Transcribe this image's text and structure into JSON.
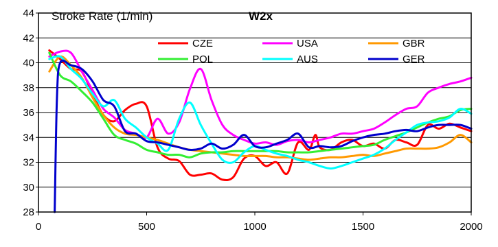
{
  "chart_data": {
    "type": "line",
    "title": "Stroke Rate (1/min)",
    "subtitle": "W2x",
    "xlabel": "",
    "ylabel": "",
    "xlim": [
      0,
      2000
    ],
    "ylim": [
      28,
      44
    ],
    "x_ticks": [
      "0",
      "500",
      "1000",
      "1500",
      "2000"
    ],
    "y_ticks": [
      "28",
      "30",
      "32",
      "34",
      "36",
      "38",
      "40",
      "42",
      "44"
    ],
    "grid": "horizontal",
    "legend_position": "top-right",
    "series": [
      {
        "name": "CZE",
        "color": "#ff0000",
        "points": [
          [
            50,
            41
          ],
          [
            100,
            40.3
          ],
          [
            150,
            39.5
          ],
          [
            200,
            39.3
          ],
          [
            250,
            37.5
          ],
          [
            300,
            35.8
          ],
          [
            350,
            35.3
          ],
          [
            400,
            36.2
          ],
          [
            450,
            36.7
          ],
          [
            500,
            36.5
          ],
          [
            550,
            33.2
          ],
          [
            600,
            32.3
          ],
          [
            650,
            32.1
          ],
          [
            700,
            31.0
          ],
          [
            750,
            31.0
          ],
          [
            800,
            31.1
          ],
          [
            850,
            30.6
          ],
          [
            900,
            30.8
          ],
          [
            950,
            32.3
          ],
          [
            1000,
            32.5
          ],
          [
            1050,
            31.7
          ],
          [
            1100,
            32.0
          ],
          [
            1150,
            31.1
          ],
          [
            1200,
            33.6
          ],
          [
            1250,
            33.0
          ],
          [
            1280,
            34.2
          ],
          [
            1300,
            33.2
          ],
          [
            1350,
            33.0
          ],
          [
            1400,
            33.6
          ],
          [
            1450,
            33.8
          ],
          [
            1500,
            33.3
          ],
          [
            1550,
            33.5
          ],
          [
            1600,
            33.1
          ],
          [
            1650,
            33.8
          ],
          [
            1700,
            33.6
          ],
          [
            1750,
            33.4
          ],
          [
            1800,
            35.0
          ],
          [
            1850,
            34.7
          ],
          [
            1900,
            35.1
          ],
          [
            1950,
            34.8
          ],
          [
            2000,
            34.5
          ]
        ]
      },
      {
        "name": "USA",
        "color": "#ff00ff",
        "points": [
          [
            50,
            40.5
          ],
          [
            100,
            40.9
          ],
          [
            150,
            40.8
          ],
          [
            200,
            39.3
          ],
          [
            250,
            37.8
          ],
          [
            300,
            36.3
          ],
          [
            350,
            35.6
          ],
          [
            400,
            34.6
          ],
          [
            450,
            34.3
          ],
          [
            500,
            34.0
          ],
          [
            550,
            35.5
          ],
          [
            600,
            34.3
          ],
          [
            650,
            35.2
          ],
          [
            700,
            37.9
          ],
          [
            750,
            39.5
          ],
          [
            800,
            37.0
          ],
          [
            850,
            35.0
          ],
          [
            900,
            34.2
          ],
          [
            950,
            33.8
          ],
          [
            1000,
            33.5
          ],
          [
            1050,
            33.6
          ],
          [
            1100,
            33.4
          ],
          [
            1150,
            33.7
          ],
          [
            1200,
            33.8
          ],
          [
            1250,
            33.6
          ],
          [
            1300,
            33.8
          ],
          [
            1350,
            34.0
          ],
          [
            1400,
            34.3
          ],
          [
            1450,
            34.3
          ],
          [
            1500,
            34.5
          ],
          [
            1550,
            34.7
          ],
          [
            1600,
            35.2
          ],
          [
            1650,
            35.8
          ],
          [
            1700,
            36.3
          ],
          [
            1750,
            36.5
          ],
          [
            1800,
            37.6
          ],
          [
            1850,
            38.0
          ],
          [
            1900,
            38.3
          ],
          [
            1950,
            38.5
          ],
          [
            2000,
            38.8
          ]
        ]
      },
      {
        "name": "GBR",
        "color": "#ff9900",
        "points": [
          [
            50,
            39.3
          ],
          [
            100,
            40.5
          ],
          [
            150,
            39.8
          ],
          [
            200,
            38.8
          ],
          [
            250,
            37.2
          ],
          [
            300,
            35.8
          ],
          [
            350,
            34.8
          ],
          [
            400,
            34.3
          ],
          [
            450,
            34.2
          ],
          [
            500,
            34.0
          ],
          [
            550,
            33.8
          ],
          [
            600,
            33.5
          ],
          [
            650,
            33.2
          ],
          [
            700,
            33.0
          ],
          [
            750,
            32.9
          ],
          [
            800,
            32.8
          ],
          [
            850,
            32.7
          ],
          [
            900,
            32.6
          ],
          [
            950,
            32.5
          ],
          [
            1000,
            32.5
          ],
          [
            1050,
            32.5
          ],
          [
            1100,
            32.4
          ],
          [
            1150,
            32.4
          ],
          [
            1200,
            32.3
          ],
          [
            1250,
            32.2
          ],
          [
            1300,
            32.3
          ],
          [
            1350,
            32.4
          ],
          [
            1400,
            32.4
          ],
          [
            1450,
            32.5
          ],
          [
            1500,
            32.6
          ],
          [
            1550,
            32.5
          ],
          [
            1600,
            32.7
          ],
          [
            1650,
            32.9
          ],
          [
            1700,
            33.1
          ],
          [
            1750,
            33.1
          ],
          [
            1800,
            33.1
          ],
          [
            1850,
            33.2
          ],
          [
            1900,
            33.6
          ],
          [
            1950,
            34.2
          ],
          [
            2000,
            33.6
          ]
        ]
      },
      {
        "name": "POL",
        "color": "#33ee33",
        "points": [
          [
            50,
            40.8
          ],
          [
            100,
            39.0
          ],
          [
            150,
            38.5
          ],
          [
            200,
            37.7
          ],
          [
            250,
            36.8
          ],
          [
            300,
            35.5
          ],
          [
            350,
            34.2
          ],
          [
            400,
            33.8
          ],
          [
            450,
            33.5
          ],
          [
            500,
            33.0
          ],
          [
            550,
            32.8
          ],
          [
            600,
            32.6
          ],
          [
            650,
            32.6
          ],
          [
            700,
            32.4
          ],
          [
            750,
            32.7
          ],
          [
            800,
            32.8
          ],
          [
            850,
            32.8
          ],
          [
            900,
            32.9
          ],
          [
            950,
            32.9
          ],
          [
            1000,
            32.9
          ],
          [
            1050,
            32.9
          ],
          [
            1100,
            32.9
          ],
          [
            1150,
            32.8
          ],
          [
            1200,
            32.8
          ],
          [
            1250,
            32.8
          ],
          [
            1300,
            32.9
          ],
          [
            1350,
            33.0
          ],
          [
            1400,
            33.1
          ],
          [
            1450,
            33.2
          ],
          [
            1500,
            33.3
          ],
          [
            1550,
            33.4
          ],
          [
            1600,
            33.8
          ],
          [
            1650,
            34.1
          ],
          [
            1700,
            34.4
          ],
          [
            1750,
            34.8
          ],
          [
            1800,
            35.2
          ],
          [
            1850,
            35.5
          ],
          [
            1900,
            35.7
          ],
          [
            1950,
            36.2
          ],
          [
            2000,
            36.3
          ]
        ]
      },
      {
        "name": "AUS",
        "color": "#00ffff",
        "points": [
          [
            50,
            40.3
          ],
          [
            100,
            40.5
          ],
          [
            150,
            39.5
          ],
          [
            200,
            38.7
          ],
          [
            250,
            37.5
          ],
          [
            300,
            36.5
          ],
          [
            350,
            37.0
          ],
          [
            400,
            35.5
          ],
          [
            450,
            34.8
          ],
          [
            500,
            34.0
          ],
          [
            550,
            33.5
          ],
          [
            600,
            33.0
          ],
          [
            650,
            35.5
          ],
          [
            700,
            36.8
          ],
          [
            750,
            35.0
          ],
          [
            800,
            33.5
          ],
          [
            850,
            32.2
          ],
          [
            900,
            32.0
          ],
          [
            950,
            32.8
          ],
          [
            1000,
            33.3
          ],
          [
            1050,
            33.0
          ],
          [
            1100,
            32.7
          ],
          [
            1150,
            32.5
          ],
          [
            1200,
            32.2
          ],
          [
            1250,
            32.0
          ],
          [
            1300,
            31.7
          ],
          [
            1350,
            31.5
          ],
          [
            1400,
            31.7
          ],
          [
            1450,
            32.0
          ],
          [
            1500,
            32.3
          ],
          [
            1550,
            32.6
          ],
          [
            1600,
            33.1
          ],
          [
            1650,
            33.8
          ],
          [
            1700,
            34.4
          ],
          [
            1750,
            35.0
          ],
          [
            1800,
            35.2
          ],
          [
            1850,
            35.3
          ],
          [
            1900,
            35.6
          ],
          [
            1950,
            36.3
          ],
          [
            2000,
            35.9
          ]
        ]
      },
      {
        "name": "GER",
        "color": "#0000cc",
        "points": [
          [
            75,
            28.0
          ],
          [
            85,
            37.0
          ],
          [
            100,
            40.0
          ],
          [
            150,
            39.8
          ],
          [
            200,
            39.5
          ],
          [
            250,
            38.5
          ],
          [
            300,
            37.0
          ],
          [
            350,
            36.5
          ],
          [
            400,
            34.5
          ],
          [
            450,
            34.3
          ],
          [
            500,
            33.7
          ],
          [
            550,
            33.6
          ],
          [
            600,
            33.4
          ],
          [
            650,
            33.2
          ],
          [
            700,
            33.0
          ],
          [
            750,
            33.1
          ],
          [
            800,
            33.5
          ],
          [
            850,
            33.1
          ],
          [
            900,
            33.4
          ],
          [
            950,
            34.2
          ],
          [
            1000,
            33.3
          ],
          [
            1050,
            33.2
          ],
          [
            1100,
            33.5
          ],
          [
            1150,
            33.8
          ],
          [
            1200,
            34.3
          ],
          [
            1250,
            33.2
          ],
          [
            1300,
            33.3
          ],
          [
            1350,
            33.2
          ],
          [
            1400,
            33.3
          ],
          [
            1450,
            33.7
          ],
          [
            1500,
            34.0
          ],
          [
            1550,
            34.2
          ],
          [
            1600,
            34.3
          ],
          [
            1650,
            34.5
          ],
          [
            1700,
            34.6
          ],
          [
            1750,
            34.5
          ],
          [
            1800,
            34.8
          ],
          [
            1850,
            35.0
          ],
          [
            1900,
            35.0
          ],
          [
            1950,
            35.0
          ],
          [
            2000,
            34.7
          ]
        ]
      }
    ]
  }
}
